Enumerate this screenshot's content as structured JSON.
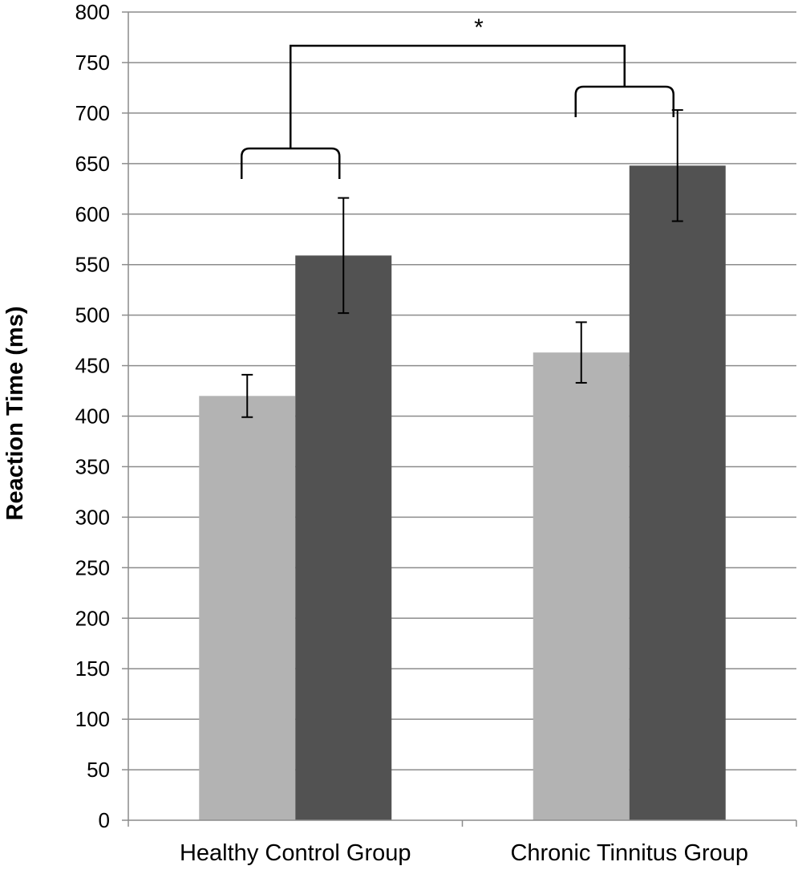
{
  "chart_data": {
    "type": "bar",
    "title": "",
    "xlabel": "",
    "ylabel": "Reaction Time (ms)",
    "ylim": [
      0,
      800
    ],
    "ytick_step": 50,
    "grid": true,
    "legend": "none",
    "categories": [
      "Healthy Control Group",
      "Chronic Tinnitus Group"
    ],
    "series": [
      {
        "values": [
          420,
          463
        ],
        "errors": [
          21,
          30
        ],
        "color": "#b3b3b3"
      },
      {
        "values": [
          559,
          648
        ],
        "errors": [
          57,
          55
        ],
        "color": "#525252"
      }
    ],
    "significance": {
      "label": "*",
      "between": [
        "Healthy Control Group",
        "Chronic Tinnitus Group"
      ]
    }
  }
}
